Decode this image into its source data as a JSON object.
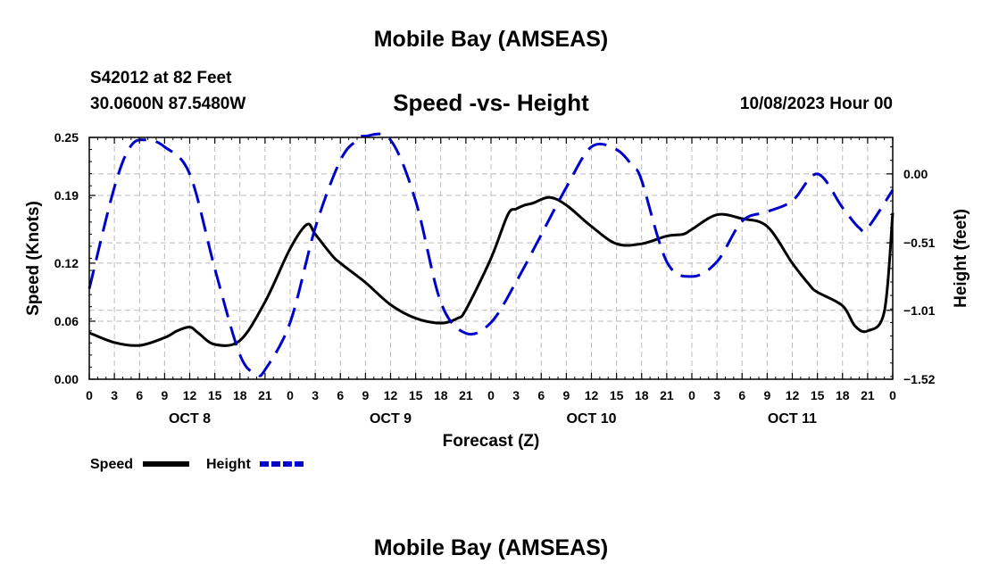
{
  "header": {
    "title": "Mobile Bay (AMSEAS)",
    "station": "S42012 at 82 Feet",
    "coords": "30.0600N  87.5480W",
    "subtitle": "Speed -vs- Height",
    "datetime": "10/08/2023 Hour 00"
  },
  "footer": {
    "title": "Mobile Bay (AMSEAS)"
  },
  "colors": {
    "speed": "#000000",
    "height": "#0000cc",
    "grid": "#bbbbbb"
  },
  "chart_data": {
    "type": "line",
    "title": "Speed -vs- Height",
    "xlabel": "Forecast (Z)",
    "ylabel": "Speed (Knots)",
    "y2label": "Height (feet)",
    "xlim": [
      0,
      96
    ],
    "ylim": [
      0,
      0.25
    ],
    "y2lim": [
      -1.52,
      0.27
    ],
    "yticks": [
      0.0,
      0.06,
      0.12,
      0.19,
      0.25
    ],
    "ytick_labels": [
      "0.00",
      "0.06",
      "0.12",
      "0.19",
      "0.25"
    ],
    "y2ticks": [
      -1.52,
      -1.01,
      -0.51,
      0.0
    ],
    "y2tick_labels": [
      "−1.52",
      "−1.01",
      "−0.51",
      "0.00"
    ],
    "xticks": [
      0,
      3,
      6,
      9,
      12,
      15,
      18,
      21,
      24,
      27,
      30,
      33,
      36,
      39,
      42,
      45,
      48,
      51,
      54,
      57,
      60,
      63,
      66,
      69,
      72,
      75,
      78,
      81,
      84,
      87,
      90,
      93,
      96
    ],
    "xtick_labels": [
      "0",
      "3",
      "6",
      "9",
      "12",
      "15",
      "18",
      "21",
      "0",
      "3",
      "6",
      "9",
      "12",
      "15",
      "18",
      "21",
      "0",
      "3",
      "6",
      "9",
      "12",
      "15",
      "18",
      "21",
      "0",
      "3",
      "6",
      "9",
      "12",
      "15",
      "18",
      "21",
      "0"
    ],
    "days": [
      {
        "label": "OCT 8",
        "x": 12
      },
      {
        "label": "OCT 9",
        "x": 36
      },
      {
        "label": "OCT 10",
        "x": 60
      },
      {
        "label": "OCT 11",
        "x": 84
      }
    ],
    "grid": true,
    "legend_position": "bottom-left",
    "series": [
      {
        "name": "Speed",
        "axis": "left",
        "style": "solid",
        "x": [
          0,
          3,
          6,
          9,
          10.5,
          12,
          13,
          15,
          18,
          21,
          24,
          26,
          27,
          29,
          30,
          33,
          36,
          39,
          42,
          44,
          45,
          48,
          50,
          51,
          52,
          53,
          55,
          57,
          60,
          63,
          66,
          69,
          71,
          72,
          75,
          78,
          81,
          84,
          86,
          87,
          90,
          91.5,
          93,
          95,
          96
        ],
        "y": [
          0.048,
          0.038,
          0.035,
          0.043,
          0.05,
          0.054,
          0.048,
          0.036,
          0.04,
          0.08,
          0.135,
          0.16,
          0.15,
          0.128,
          0.12,
          0.1,
          0.077,
          0.063,
          0.058,
          0.063,
          0.072,
          0.125,
          0.17,
          0.176,
          0.18,
          0.182,
          0.188,
          0.18,
          0.158,
          0.14,
          0.14,
          0.148,
          0.15,
          0.155,
          0.17,
          0.166,
          0.158,
          0.12,
          0.098,
          0.09,
          0.076,
          0.055,
          0.05,
          0.07,
          0.172
        ]
      },
      {
        "name": "Height",
        "axis": "right",
        "style": "dashed",
        "x": [
          0,
          3,
          5,
          7,
          9,
          12,
          15,
          18,
          20,
          21,
          24,
          27,
          30,
          32,
          33,
          36,
          39,
          42,
          45,
          48,
          51,
          54,
          57,
          60,
          63,
          65,
          66,
          69,
          72,
          75,
          78,
          81,
          84,
          87,
          90,
          92,
          93,
          96
        ],
        "y": [
          -0.85,
          -0.1,
          0.21,
          0.25,
          0.2,
          0.0,
          -0.7,
          -1.34,
          -1.48,
          -1.45,
          -1.1,
          -0.4,
          0.1,
          0.25,
          0.28,
          0.25,
          -0.2,
          -0.95,
          -1.18,
          -1.1,
          -0.8,
          -0.45,
          -0.1,
          0.2,
          0.18,
          0.05,
          -0.05,
          -0.65,
          -0.76,
          -0.65,
          -0.35,
          -0.28,
          -0.2,
          0.0,
          -0.25,
          -0.4,
          -0.4,
          -0.12
        ]
      }
    ]
  }
}
